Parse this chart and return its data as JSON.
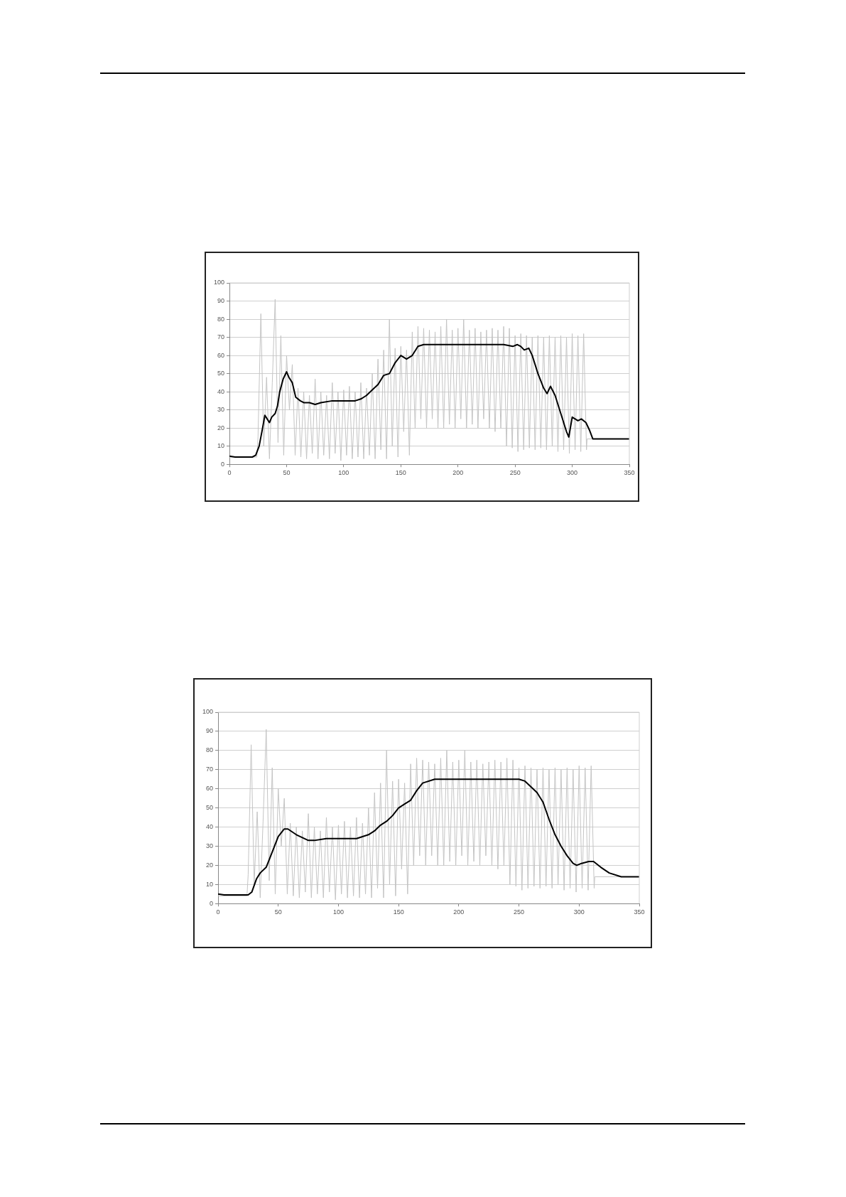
{
  "chart_data": [
    {
      "type": "line",
      "xlim": [
        0,
        350
      ],
      "xticks": [
        0,
        50,
        100,
        150,
        200,
        250,
        300,
        350
      ],
      "ylim": [
        0,
        100
      ],
      "yticks": [
        0,
        10,
        20,
        30,
        40,
        50,
        60,
        70,
        80,
        90,
        100
      ],
      "grid": "y",
      "marker": "none",
      "line_style": "solid",
      "series": [
        {
          "color": "#c4c4c4",
          "x": [
            0,
            24,
            25,
            27.5,
            30,
            32.5,
            35,
            37.5,
            40,
            42.5,
            45,
            47.5,
            50,
            52.5,
            55,
            57.5,
            60,
            62.5,
            65,
            67.5,
            70,
            72.5,
            75,
            77.5,
            80,
            82.5,
            85,
            87.5,
            90,
            92.5,
            95,
            97.5,
            100,
            102.5,
            105,
            107.5,
            110,
            112.5,
            115,
            117.5,
            120,
            122.5,
            125,
            127.5,
            130,
            132.5,
            135,
            137.5,
            140,
            142.5,
            145,
            147.5,
            150,
            152.5,
            155,
            157.5,
            160,
            162.5,
            165,
            167.5,
            170,
            172.5,
            175,
            177.5,
            180,
            182.5,
            185,
            187.5,
            190,
            192.5,
            195,
            197.5,
            200,
            202.5,
            205,
            207.5,
            210,
            212.5,
            215,
            217.5,
            220,
            222.5,
            225,
            227.5,
            230,
            232.5,
            235,
            237.5,
            240,
            242.5,
            245,
            247.5,
            250,
            252.5,
            255,
            257.5,
            260,
            262.5,
            265,
            267.5,
            270,
            272.5,
            275,
            277.5,
            280,
            282.5,
            285,
            287.5,
            290,
            292.5,
            295,
            297.5,
            300,
            302.5,
            305,
            307.5,
            310,
            312.5,
            313,
            350
          ],
          "values": [
            4,
            4,
            15,
            83,
            10,
            48,
            3,
            45,
            91,
            12,
            71,
            5,
            60,
            30,
            55,
            5,
            42,
            4,
            40,
            3,
            38,
            6,
            47,
            3,
            40,
            5,
            38,
            3,
            45,
            6,
            40,
            2,
            41,
            5,
            43,
            3,
            40,
            4,
            45,
            3,
            42,
            5,
            50,
            3,
            58,
            8,
            63,
            3,
            80,
            10,
            64,
            4,
            65,
            18,
            63,
            5,
            73,
            20,
            76,
            25,
            75,
            20,
            74,
            25,
            73,
            20,
            76,
            20,
            80,
            22,
            74,
            20,
            75,
            25,
            80,
            20,
            74,
            22,
            75,
            20,
            73,
            25,
            74,
            20,
            75,
            18,
            74,
            20,
            76,
            10,
            75,
            9,
            71,
            7,
            72,
            8,
            71,
            9,
            70,
            8,
            71,
            9,
            70,
            8,
            71,
            10,
            70,
            7,
            71,
            8,
            70,
            6,
            72,
            8,
            71,
            7,
            72,
            8,
            14,
            14
          ]
        },
        {
          "color": "#000000",
          "x": [
            0,
            5,
            20,
            23,
            26,
            29,
            31,
            33,
            35,
            37,
            40,
            42,
            44,
            47,
            50,
            52,
            55,
            58,
            62,
            65,
            70,
            75,
            80,
            90,
            100,
            110,
            115,
            120,
            125,
            130,
            135,
            140,
            145,
            150,
            155,
            160,
            165,
            170,
            180,
            200,
            240,
            248,
            252,
            255,
            258,
            262,
            265,
            270,
            275,
            278,
            281,
            285,
            290,
            295,
            297,
            300,
            305,
            308,
            312,
            315,
            318,
            325,
            350
          ],
          "values": [
            4.5,
            4,
            4,
            5,
            10,
            20,
            27,
            25,
            23,
            26,
            28,
            32,
            40,
            47,
            51,
            48,
            45,
            37,
            35,
            34,
            34,
            33,
            34,
            35,
            35,
            35,
            36,
            38,
            41,
            44,
            49,
            50,
            56,
            60,
            58,
            60,
            65,
            66,
            66,
            66,
            66,
            65,
            66,
            65,
            63,
            64,
            60,
            50,
            42,
            39,
            43,
            38,
            28,
            18,
            15,
            26,
            24,
            25,
            23,
            19,
            14,
            14,
            14
          ]
        }
      ]
    },
    {
      "type": "line",
      "xlim": [
        0,
        350
      ],
      "xticks": [
        0,
        50,
        100,
        150,
        200,
        250,
        300,
        350
      ],
      "ylim": [
        0,
        100
      ],
      "yticks": [
        0,
        10,
        20,
        30,
        40,
        50,
        60,
        70,
        80,
        90,
        100
      ],
      "grid": "y",
      "marker": "none",
      "line_style": "solid",
      "series": [
        {
          "color": "#c4c4c4",
          "x": [
            0,
            24,
            25,
            27.5,
            30,
            32.5,
            35,
            37.5,
            40,
            42.5,
            45,
            47.5,
            50,
            52.5,
            55,
            57.5,
            60,
            62.5,
            65,
            67.5,
            70,
            72.5,
            75,
            77.5,
            80,
            82.5,
            85,
            87.5,
            90,
            92.5,
            95,
            97.5,
            100,
            102.5,
            105,
            107.5,
            110,
            112.5,
            115,
            117.5,
            120,
            122.5,
            125,
            127.5,
            130,
            132.5,
            135,
            137.5,
            140,
            142.5,
            145,
            147.5,
            150,
            152.5,
            155,
            157.5,
            160,
            162.5,
            165,
            167.5,
            170,
            172.5,
            175,
            177.5,
            180,
            182.5,
            185,
            187.5,
            190,
            192.5,
            195,
            197.5,
            200,
            202.5,
            205,
            207.5,
            210,
            212.5,
            215,
            217.5,
            220,
            222.5,
            225,
            227.5,
            230,
            232.5,
            235,
            237.5,
            240,
            242.5,
            245,
            247.5,
            250,
            252.5,
            255,
            257.5,
            260,
            262.5,
            265,
            267.5,
            270,
            272.5,
            275,
            277.5,
            280,
            282.5,
            285,
            287.5,
            290,
            292.5,
            295,
            297.5,
            300,
            302.5,
            305,
            307.5,
            310,
            312.5,
            313,
            350
          ],
          "values": [
            4,
            4,
            15,
            83,
            10,
            48,
            3,
            45,
            91,
            12,
            71,
            5,
            60,
            30,
            55,
            5,
            42,
            4,
            40,
            3,
            38,
            6,
            47,
            3,
            40,
            5,
            38,
            3,
            45,
            6,
            40,
            2,
            41,
            5,
            43,
            3,
            40,
            4,
            45,
            3,
            42,
            5,
            50,
            3,
            58,
            8,
            63,
            3,
            80,
            10,
            64,
            4,
            65,
            18,
            63,
            5,
            73,
            20,
            76,
            25,
            75,
            20,
            74,
            25,
            73,
            20,
            76,
            20,
            80,
            22,
            74,
            20,
            75,
            25,
            80,
            20,
            74,
            22,
            75,
            20,
            73,
            25,
            74,
            20,
            75,
            18,
            74,
            20,
            76,
            10,
            75,
            9,
            71,
            7,
            72,
            8,
            71,
            9,
            70,
            8,
            71,
            9,
            70,
            8,
            71,
            10,
            70,
            7,
            71,
            8,
            70,
            6,
            72,
            8,
            71,
            7,
            72,
            8,
            14,
            14
          ]
        },
        {
          "color": "#000000",
          "x": [
            0,
            5,
            25,
            28,
            32,
            35,
            40,
            45,
            50,
            55,
            58,
            65,
            75,
            80,
            90,
            100,
            115,
            120,
            125,
            130,
            135,
            140,
            145,
            150,
            155,
            160,
            165,
            170,
            180,
            200,
            240,
            250,
            255,
            265,
            270,
            275,
            280,
            285,
            290,
            295,
            298,
            302,
            308,
            312,
            318,
            325,
            335,
            350
          ],
          "values": [
            5,
            4.5,
            4.5,
            6,
            13,
            16,
            19,
            27,
            35,
            39,
            39,
            36,
            33,
            33,
            34,
            34,
            34,
            35,
            36,
            38,
            41,
            43,
            46,
            50,
            52,
            54,
            59,
            63,
            65,
            65,
            65,
            65,
            64,
            58,
            53,
            44,
            36,
            30,
            25,
            21,
            20,
            21,
            22,
            22,
            19,
            16,
            14,
            14
          ]
        }
      ]
    }
  ]
}
